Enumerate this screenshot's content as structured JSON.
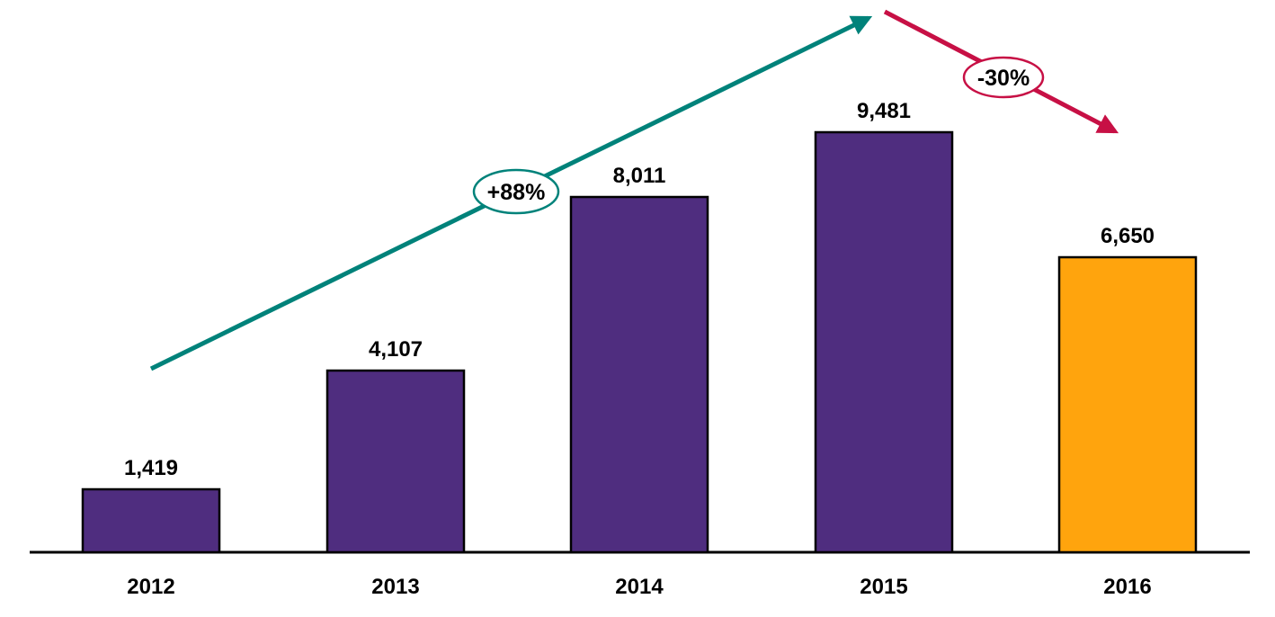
{
  "chart_data": {
    "type": "bar",
    "categories": [
      "2012",
      "2013",
      "2014",
      "2015",
      "2016"
    ],
    "values": [
      1419,
      4107,
      8011,
      9481,
      6650
    ],
    "value_labels": [
      "1,419",
      "4,107",
      "8,011",
      "9,481",
      "6,650"
    ],
    "series": [
      {
        "name": "annual-value",
        "values": [
          1419,
          4107,
          8011,
          9481,
          6650
        ]
      }
    ],
    "title": "",
    "xlabel": "",
    "ylabel": "",
    "ylim": [
      0,
      10000
    ],
    "grid": false,
    "legend": "none",
    "bar_colors": [
      "#4F2D7F",
      "#4F2D7F",
      "#4F2D7F",
      "#4F2D7F",
      "#FFA40D"
    ],
    "annotations": [
      {
        "label": "+88%",
        "type": "increase-arrow",
        "color": "#00827A",
        "from_category": "2012",
        "to_category": "2015"
      },
      {
        "label": "-30%",
        "type": "decrease-arrow",
        "color": "#C71045",
        "from_category": "2015",
        "to_category": "2016"
      }
    ]
  },
  "colors": {
    "bar_purple": "#4F2D7F",
    "bar_orange": "#FFA40D",
    "bar_border": "#000000",
    "growth_arrow": "#00827A",
    "decline_arrow": "#C71045",
    "axis": "#000000",
    "text": "#000000",
    "badge_fill": "#ffffff",
    "background": "#ffffff"
  }
}
